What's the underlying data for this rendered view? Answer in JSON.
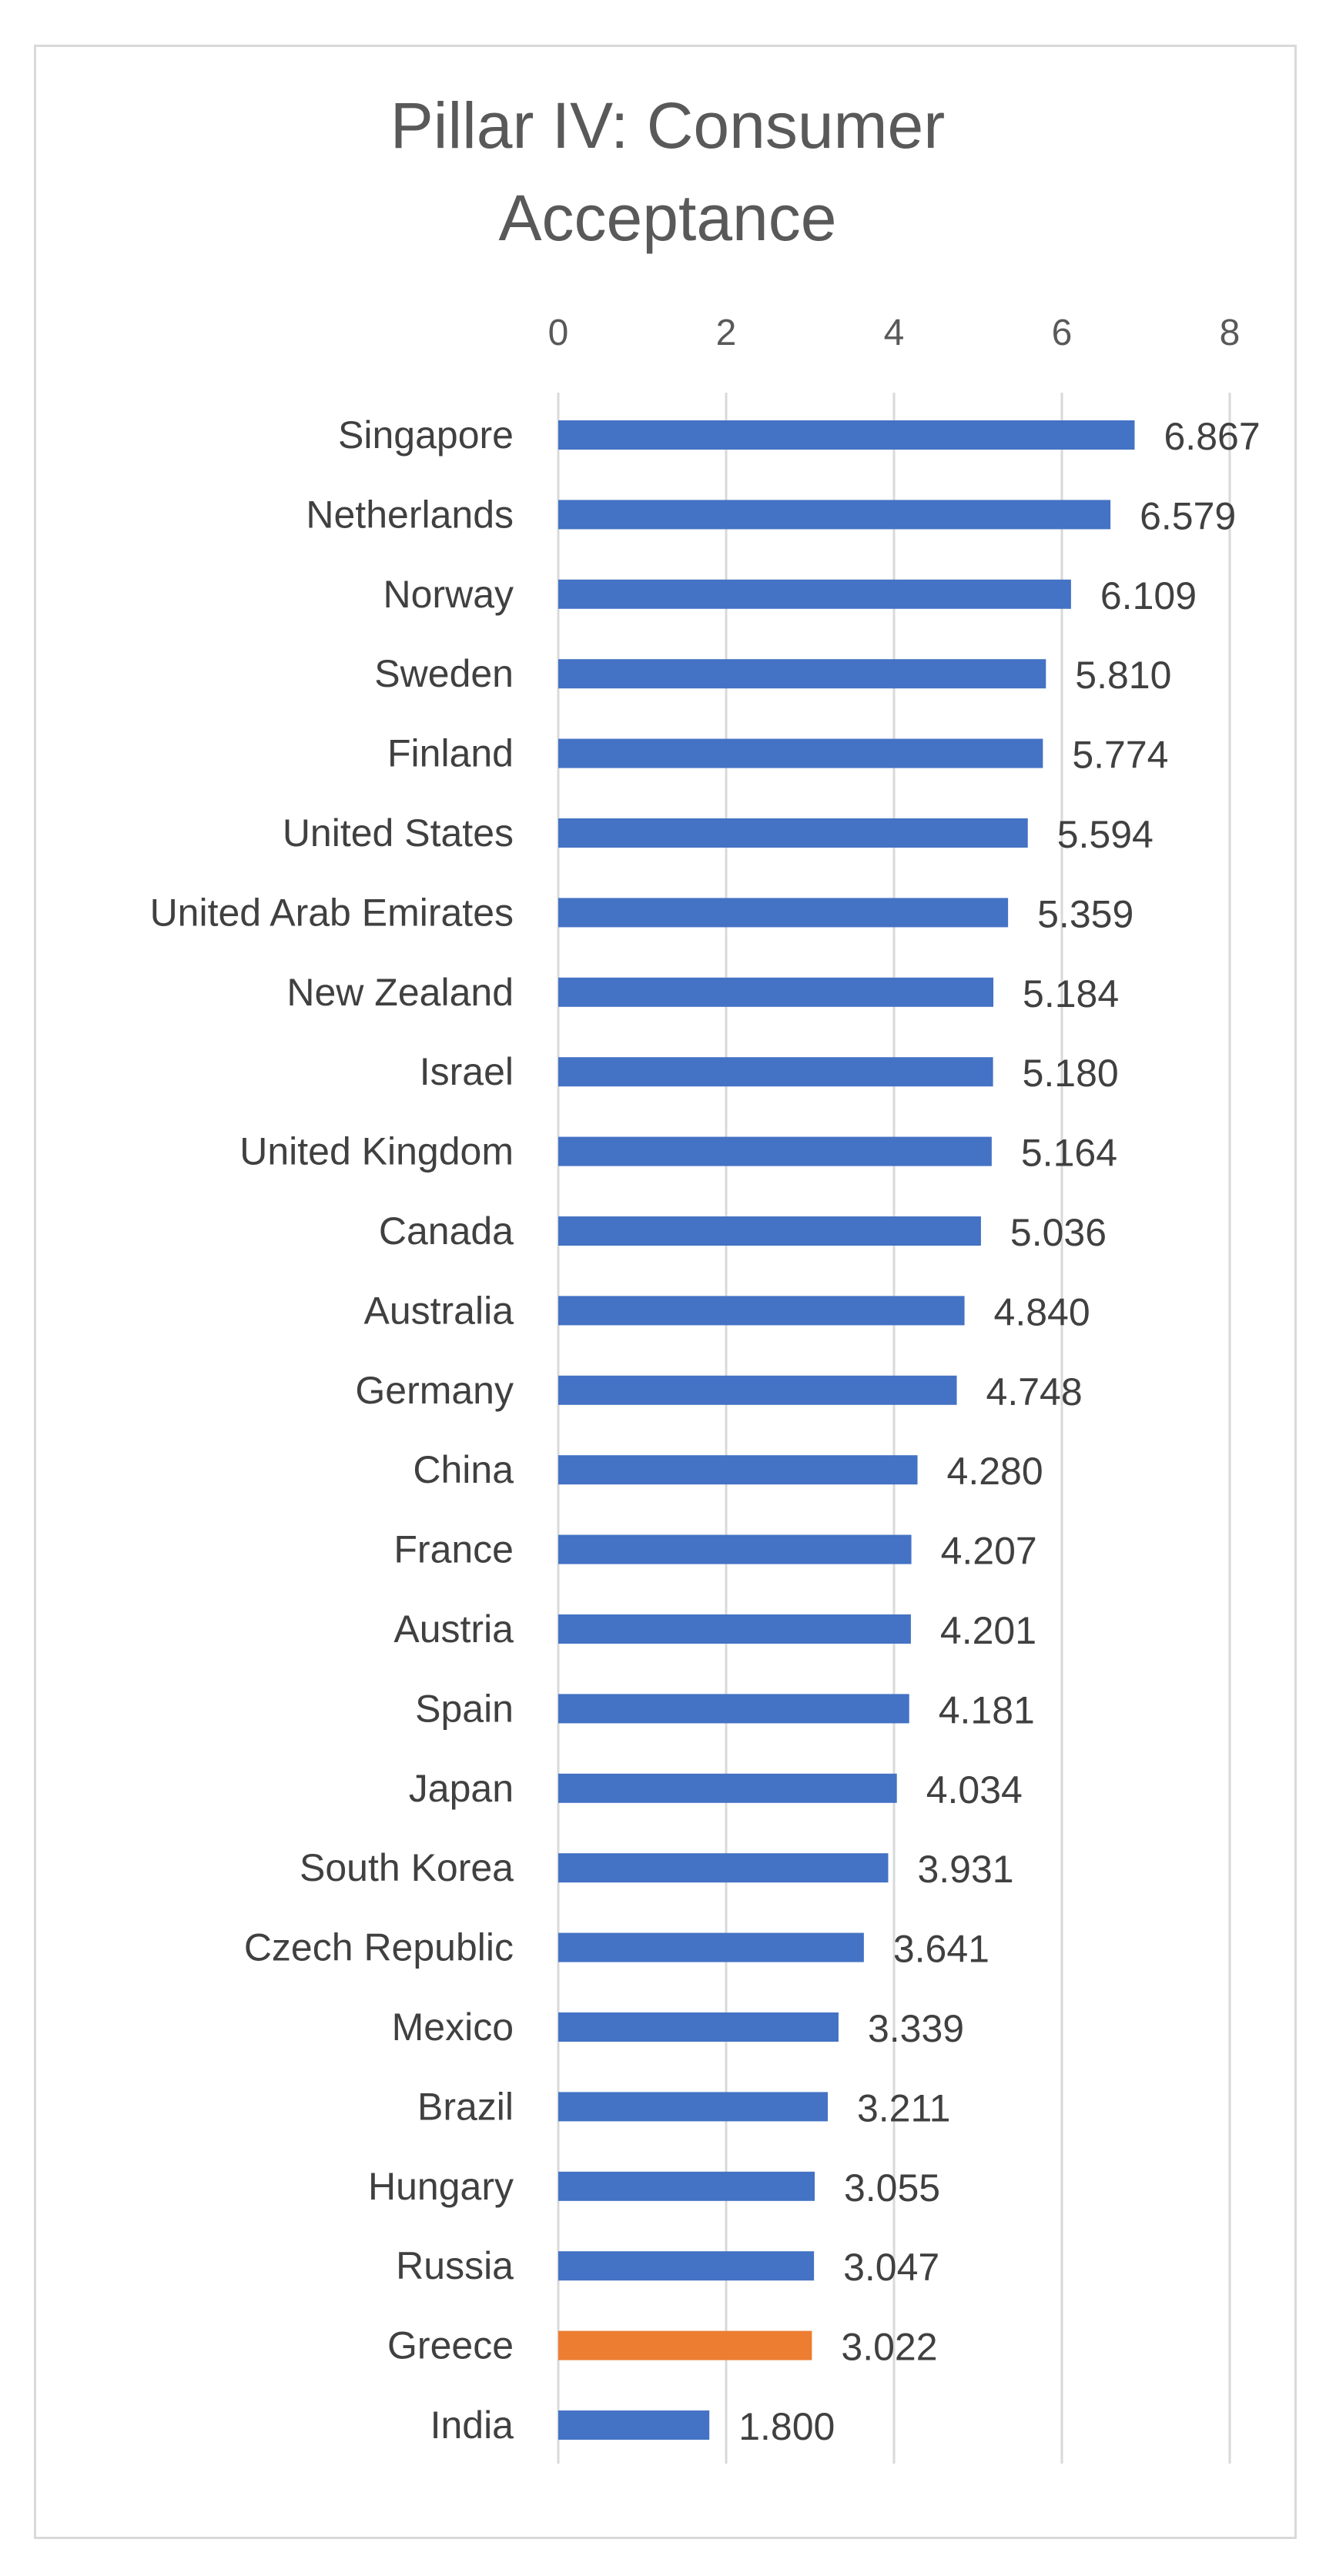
{
  "chart_data": {
    "type": "bar",
    "orientation": "horizontal",
    "title": "Pillar IV: Consumer Acceptance",
    "title_lines": [
      "Pillar IV: Consumer",
      "Acceptance"
    ],
    "xlabel": "",
    "ylabel": "",
    "xlim": [
      0,
      8
    ],
    "x_ticks": [
      0,
      2,
      4,
      6,
      8
    ],
    "x_tick_labels": [
      "0",
      "2",
      "4",
      "6",
      "8"
    ],
    "x_axis_position": "top",
    "gridlines": true,
    "legend": "none",
    "categories": [
      "Singapore",
      "Netherlands",
      "Norway",
      "Sweden",
      "Finland",
      "United States",
      "United Arab Emirates",
      "New Zealand",
      "Israel",
      "United Kingdom",
      "Canada",
      "Australia",
      "Germany",
      "China",
      "France",
      "Austria",
      "Spain",
      "Japan",
      "South Korea",
      "Czech Republic",
      "Mexico",
      "Brazil",
      "Hungary",
      "Russia",
      "Greece",
      "India"
    ],
    "values": [
      6.867,
      6.579,
      6.109,
      5.81,
      5.774,
      5.594,
      5.359,
      5.184,
      5.18,
      5.164,
      5.036,
      4.84,
      4.748,
      4.28,
      4.207,
      4.201,
      4.181,
      4.034,
      3.931,
      3.641,
      3.339,
      3.211,
      3.055,
      3.047,
      3.022,
      1.8
    ],
    "value_labels": [
      "6.867",
      "6.579",
      "6.109",
      "5.810",
      "5.774",
      "5.594",
      "5.359",
      "5.184",
      "5.180",
      "5.164",
      "5.036",
      "4.840",
      "4.748",
      "4.280",
      "4.207",
      "4.201",
      "4.181",
      "4.034",
      "3.931",
      "3.641",
      "3.339",
      "3.211",
      "3.055",
      "3.047",
      "3.022",
      "1.800"
    ],
    "highlight": "Greece",
    "colors": {
      "bar": "#4472c4",
      "highlight": "#ed7d31",
      "grid": "#d9d9d9",
      "text": "#595959"
    }
  }
}
